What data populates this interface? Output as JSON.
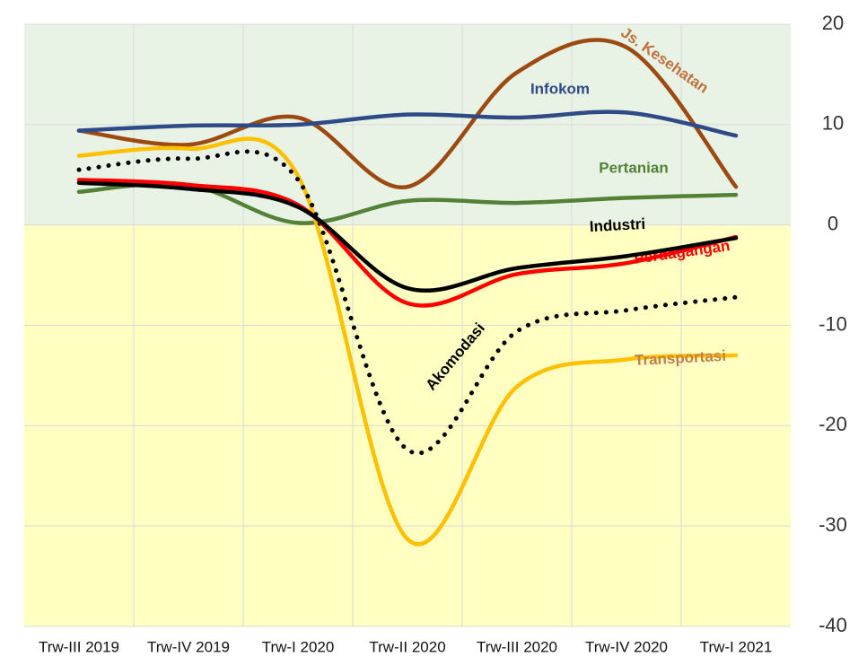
{
  "chart_data": {
    "type": "line",
    "categories": [
      "Trw-III 2019",
      "Trw-IV 2019",
      "Trw-I 2020",
      "Trw-II 2020",
      "Trw-III 2020",
      "Trw-IV 2020",
      "Trw-I 2021"
    ],
    "series": [
      {
        "name": "Js. Kesehatan",
        "color": "#9c4a12",
        "label_color": "#c0703c",
        "values": [
          9.4,
          8.0,
          10.7,
          3.8,
          15.2,
          17.7,
          3.8
        ]
      },
      {
        "name": "Infokom",
        "color": "#2e4a87",
        "label_color": "#2e4a87",
        "values": [
          9.4,
          9.9,
          10.0,
          11.0,
          10.7,
          11.2,
          8.9
        ]
      },
      {
        "name": "Pertanian",
        "color": "#538135",
        "label_color": "#538135",
        "values": [
          3.3,
          4.0,
          0.2,
          2.4,
          2.2,
          2.7,
          3.0
        ]
      },
      {
        "name": "Transportasi",
        "color": "#ffc000",
        "label_color": "#c0804c",
        "values": [
          6.9,
          7.6,
          4.9,
          -31.3,
          -16.1,
          -13.4,
          -13.0
        ]
      },
      {
        "name": "Akomodasi",
        "color": "#000000",
        "label_color": "#000000",
        "dash": true,
        "values": [
          5.5,
          6.6,
          4.5,
          -22.4,
          -10.6,
          -8.5,
          -7.2
        ]
      },
      {
        "name": "Perdagangan",
        "color": "#ff0000",
        "label_color": "#ff0000",
        "values": [
          4.5,
          4.0,
          2.0,
          -7.8,
          -4.9,
          -3.8,
          -1.2
        ]
      },
      {
        "name": "Industri",
        "color": "#000000",
        "label_color": "#000000",
        "values": [
          4.2,
          3.6,
          1.8,
          -6.3,
          -4.3,
          -3.1,
          -1.3
        ]
      }
    ],
    "ylim": [
      -40,
      20
    ],
    "yticks": [
      20,
      10,
      0,
      -10,
      -20,
      -30,
      -40
    ],
    "grid": true
  }
}
